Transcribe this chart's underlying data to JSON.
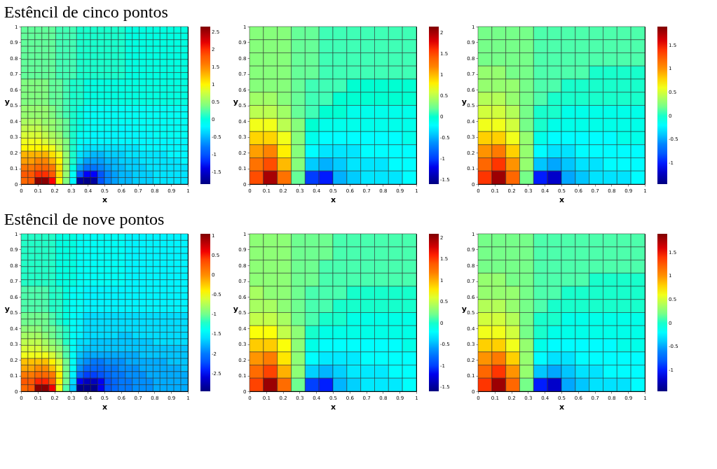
{
  "chart_data": [
    {
      "type": "heatmap",
      "title": "Estêncil de cinco pontos",
      "xlabel": "x",
      "ylabel": "y",
      "xlim": [
        0,
        1
      ],
      "ylim": [
        0,
        1
      ],
      "xticks": [
        0,
        0.1,
        0.2,
        0.3,
        0.4,
        0.5,
        0.6,
        0.7,
        0.8,
        0.9,
        1
      ],
      "yticks": [
        0,
        0.1,
        0.2,
        0.3,
        0.4,
        0.5,
        0.6,
        0.7,
        0.8,
        0.9,
        1
      ],
      "clim": [
        -1.85,
        2.65
      ],
      "cticks": [
        -1.5,
        -1,
        -0.5,
        0,
        0.5,
        1,
        1.5,
        2,
        2.5
      ],
      "cells": [
        [
          0.3,
          0.3,
          0.3,
          0.3,
          0.3,
          0.2,
          0.2,
          0.2,
          0.1,
          0.1,
          0.1,
          0.1,
          0.1,
          0.1,
          0.1,
          0.0,
          0.0,
          0.0,
          0.0,
          0.0,
          0.0,
          0.0,
          0.0,
          0.0
        ],
        [
          0.3,
          0.3,
          0.3,
          0.3,
          0.3,
          0.2,
          0.2,
          0.2,
          0.1,
          0.1,
          0.1,
          0.1,
          0.1,
          0.1,
          0.1,
          0.0,
          0.0,
          0.0,
          0.0,
          0.0,
          0.0,
          0.0,
          0.0,
          0.0
        ],
        [
          0.3,
          0.3,
          0.3,
          0.3,
          0.3,
          0.2,
          0.2,
          0.2,
          0.1,
          0.1,
          0.1,
          0.1,
          0.1,
          0.1,
          0.1,
          0.0,
          0.0,
          0.0,
          0.0,
          0.0,
          0.0,
          0.0,
          0.0,
          0.0
        ],
        [
          0.3,
          0.3,
          0.3,
          0.3,
          0.3,
          0.2,
          0.2,
          0.2,
          0.1,
          0.1,
          0.1,
          0.1,
          0.1,
          0.1,
          0.1,
          0.0,
          0.0,
          0.0,
          0.0,
          0.0,
          0.0,
          0.0,
          0.0,
          0.0
        ],
        [
          0.3,
          0.3,
          0.3,
          0.3,
          0.3,
          0.2,
          0.2,
          0.2,
          0.1,
          0.1,
          0.1,
          0.1,
          0.1,
          0.1,
          0.1,
          0.0,
          0.0,
          0.0,
          0.0,
          0.0,
          0.0,
          0.0,
          0.0,
          0.0
        ],
        [
          0.3,
          0.3,
          0.3,
          0.3,
          0.3,
          0.2,
          0.2,
          0.2,
          0.1,
          0.1,
          0.1,
          0.1,
          0.1,
          0.1,
          0.1,
          0.0,
          0.0,
          0.0,
          0.0,
          0.0,
          0.0,
          0.0,
          0.0,
          0.0
        ],
        [
          0.3,
          0.3,
          0.3,
          0.3,
          0.3,
          0.2,
          0.2,
          0.2,
          0.1,
          0.1,
          0.1,
          0.1,
          0.1,
          0.1,
          0.1,
          0.0,
          0.0,
          0.0,
          0.0,
          0.0,
          0.0,
          0.0,
          0.0,
          0.0
        ],
        [
          0.3,
          0.3,
          0.3,
          0.3,
          0.3,
          0.2,
          0.2,
          0.2,
          0.1,
          0.1,
          0.1,
          0.1,
          0.1,
          0.1,
          0.1,
          0.0,
          0.0,
          0.0,
          0.0,
          0.0,
          0.0,
          0.0,
          0.0,
          0.0
        ],
        [
          0.4,
          0.4,
          0.4,
          0.4,
          0.3,
          0.3,
          0.2,
          0.1,
          0.1,
          0.0,
          0.0,
          0.0,
          0.0,
          0.0,
          0.0,
          0.0,
          0.0,
          0.0,
          0.0,
          0.0,
          0.0,
          0.0,
          0.0,
          0.0
        ],
        [
          0.4,
          0.4,
          0.4,
          0.4,
          0.3,
          0.3,
          0.2,
          0.1,
          0.1,
          0.0,
          0.0,
          0.0,
          0.0,
          0.0,
          0.0,
          0.0,
          0.0,
          0.0,
          0.0,
          0.0,
          0.0,
          0.0,
          0.0,
          0.0
        ],
        [
          0.4,
          0.4,
          0.4,
          0.4,
          0.3,
          0.3,
          0.2,
          0.1,
          0.1,
          0.0,
          0.0,
          0.0,
          0.0,
          0.0,
          0.0,
          0.0,
          0.0,
          0.0,
          0.0,
          0.0,
          0.0,
          0.0,
          0.0,
          0.0
        ],
        [
          0.4,
          0.4,
          0.4,
          0.4,
          0.3,
          0.3,
          0.2,
          0.1,
          0.1,
          0.0,
          0.0,
          0.0,
          0.0,
          0.0,
          0.0,
          0.0,
          0.0,
          0.0,
          0.0,
          0.0,
          0.0,
          0.0,
          0.0,
          0.0
        ],
        [
          0.5,
          0.5,
          0.5,
          0.5,
          0.4,
          0.3,
          0.2,
          0.1,
          0.0,
          -0.1,
          -0.1,
          -0.1,
          -0.1,
          -0.1,
          -0.1,
          -0.1,
          -0.1,
          -0.1,
          -0.1,
          -0.1,
          -0.1,
          -0.1,
          -0.1,
          -0.1
        ],
        [
          0.5,
          0.5,
          0.5,
          0.5,
          0.4,
          0.3,
          0.2,
          0.1,
          0.0,
          -0.1,
          -0.1,
          -0.1,
          -0.1,
          -0.1,
          -0.1,
          -0.1,
          -0.1,
          -0.1,
          -0.1,
          -0.1,
          -0.1,
          -0.1,
          -0.1,
          -0.1
        ],
        [
          0.6,
          0.6,
          0.6,
          0.5,
          0.5,
          0.4,
          0.3,
          0.1,
          0.0,
          -0.1,
          -0.1,
          -0.1,
          -0.1,
          -0.1,
          -0.1,
          -0.1,
          -0.1,
          -0.1,
          -0.1,
          -0.1,
          -0.1,
          -0.1,
          -0.1,
          -0.1
        ],
        [
          0.7,
          0.7,
          0.7,
          0.6,
          0.5,
          0.4,
          0.3,
          0.1,
          0.0,
          -0.1,
          -0.1,
          -0.1,
          -0.1,
          -0.1,
          -0.2,
          -0.2,
          -0.1,
          -0.1,
          -0.1,
          -0.1,
          -0.1,
          -0.1,
          -0.1,
          -0.1
        ],
        [
          0.8,
          0.8,
          0.8,
          0.7,
          0.6,
          0.5,
          0.3,
          0.1,
          -0.1,
          -0.1,
          -0.2,
          -0.2,
          -0.2,
          -0.2,
          -0.2,
          -0.2,
          -0.2,
          -0.2,
          -0.2,
          -0.1,
          -0.1,
          -0.1,
          -0.1,
          -0.1
        ],
        [
          0.9,
          0.9,
          0.9,
          0.8,
          0.7,
          0.6,
          0.4,
          0.1,
          -0.1,
          -0.2,
          -0.2,
          -0.2,
          -0.2,
          -0.2,
          -0.2,
          -0.2,
          -0.2,
          -0.2,
          -0.2,
          -0.2,
          -0.2,
          -0.2,
          -0.2,
          -0.2
        ],
        [
          1.0,
          1.0,
          1.0,
          1.0,
          0.9,
          0.7,
          0.4,
          0.1,
          -0.2,
          -0.3,
          -0.3,
          -0.3,
          -0.3,
          -0.3,
          -0.3,
          -0.3,
          -0.3,
          -0.2,
          -0.2,
          -0.2,
          -0.2,
          -0.2,
          -0.2,
          -0.2
        ],
        [
          1.3,
          1.3,
          1.3,
          1.3,
          1.1,
          0.9,
          0.5,
          0.1,
          -0.3,
          -0.4,
          -0.5,
          -0.5,
          -0.4,
          -0.4,
          -0.4,
          -0.3,
          -0.3,
          -0.3,
          -0.3,
          -0.3,
          -0.3,
          -0.2,
          -0.2,
          -0.2
        ],
        [
          1.4,
          1.4,
          1.5,
          1.5,
          1.3,
          1.0,
          0.5,
          0.1,
          -0.4,
          -0.6,
          -0.6,
          -0.6,
          -0.5,
          -0.5,
          -0.4,
          -0.4,
          -0.4,
          -0.3,
          -0.3,
          -0.3,
          -0.3,
          -0.3,
          -0.3,
          -0.2
        ],
        [
          1.6,
          1.6,
          1.7,
          1.7,
          1.6,
          1.1,
          0.5,
          0.0,
          -0.6,
          -0.8,
          -0.8,
          -0.7,
          -0.6,
          -0.5,
          -0.5,
          -0.4,
          -0.4,
          -0.4,
          -0.3,
          -0.3,
          -0.3,
          -0.3,
          -0.3,
          -0.3
        ],
        [
          1.8,
          1.8,
          2.0,
          2.0,
          1.8,
          1.1,
          0.5,
          -0.1,
          -1.0,
          -1.3,
          -1.3,
          -1.0,
          -0.7,
          -0.6,
          -0.5,
          -0.5,
          -0.4,
          -0.4,
          -0.4,
          -0.3,
          -0.3,
          -0.3,
          -0.3,
          -0.3
        ],
        [
          1.7,
          1.8,
          2.6,
          2.6,
          2.1,
          1.0,
          0.4,
          -0.2,
          -1.7,
          -1.8,
          -1.7,
          -1.0,
          -0.7,
          -0.6,
          -0.5,
          -0.5,
          -0.4,
          -0.4,
          -0.4,
          -0.3,
          -0.3,
          -0.3,
          -0.3,
          -0.3
        ]
      ]
    },
    {
      "type": "heatmap",
      "xlabel": "x",
      "ylabel": "y",
      "xlim": [
        0,
        1
      ],
      "ylim": [
        0,
        1
      ],
      "xticks": [
        0,
        0.1,
        0.2,
        0.3,
        0.4,
        0.5,
        0.6,
        0.7,
        0.8,
        0.9,
        1
      ],
      "yticks": [
        0,
        0.1,
        0.2,
        0.3,
        0.4,
        0.5,
        0.6,
        0.7,
        0.8,
        0.9,
        1
      ],
      "clim": [
        -1.6,
        2.15
      ],
      "cticks": [
        -1.5,
        -1,
        -0.5,
        0,
        0.5,
        1,
        1.5,
        2
      ],
      "cells": [
        [
          0.3,
          0.3,
          0.3,
          0.2,
          0.2,
          0.1,
          0.1,
          0.1,
          0.1,
          0.1,
          0.1,
          0.1
        ],
        [
          0.3,
          0.3,
          0.3,
          0.2,
          0.2,
          0.1,
          0.1,
          0.1,
          0.1,
          0.1,
          0.1,
          0.1
        ],
        [
          0.3,
          0.3,
          0.3,
          0.2,
          0.2,
          0.1,
          0.1,
          0.1,
          0.1,
          0.1,
          0.1,
          0.1
        ],
        [
          0.3,
          0.3,
          0.3,
          0.2,
          0.2,
          0.1,
          0.1,
          0.1,
          0.1,
          0.1,
          0.1,
          0.1
        ],
        [
          0.3,
          0.3,
          0.3,
          0.2,
          0.1,
          0.1,
          0.1,
          0.0,
          0.0,
          0.0,
          0.0,
          0.0
        ],
        [
          0.4,
          0.4,
          0.3,
          0.2,
          0.1,
          0.1,
          0.0,
          0.0,
          0.0,
          0.0,
          0.0,
          0.0
        ],
        [
          0.5,
          0.5,
          0.4,
          0.2,
          0.1,
          0.0,
          0.0,
          -0.1,
          -0.1,
          -0.1,
          -0.1,
          -0.1
        ],
        [
          0.7,
          0.7,
          0.5,
          0.3,
          0.0,
          -0.1,
          -0.1,
          -0.1,
          -0.1,
          -0.1,
          -0.1,
          -0.1
        ],
        [
          0.9,
          0.9,
          0.7,
          0.3,
          -0.1,
          -0.2,
          -0.2,
          -0.2,
          -0.2,
          -0.2,
          -0.2,
          -0.1
        ],
        [
          1.1,
          1.2,
          0.8,
          0.3,
          -0.2,
          -0.3,
          -0.3,
          -0.3,
          -0.2,
          -0.2,
          -0.2,
          -0.2
        ],
        [
          1.3,
          1.5,
          1.0,
          0.3,
          -0.4,
          -0.5,
          -0.4,
          -0.3,
          -0.3,
          -0.3,
          -0.2,
          -0.2
        ],
        [
          1.5,
          2.0,
          1.3,
          0.2,
          -1.0,
          -1.1,
          -0.5,
          -0.4,
          -0.3,
          -0.3,
          -0.3,
          -0.2
        ]
      ]
    },
    {
      "type": "heatmap",
      "xlabel": "x",
      "ylabel": "y",
      "xlim": [
        0,
        1
      ],
      "ylim": [
        0,
        1
      ],
      "xticks": [
        0,
        0.1,
        0.2,
        0.3,
        0.4,
        0.5,
        0.6,
        0.7,
        0.8,
        0.9,
        1
      ],
      "yticks": [
        0,
        0.1,
        0.2,
        0.3,
        0.4,
        0.5,
        0.6,
        0.7,
        0.8,
        0.9,
        1
      ],
      "clim": [
        -1.45,
        1.9
      ],
      "cticks": [
        -1,
        -0.5,
        0,
        0.5,
        1,
        1.5
      ],
      "cells": [
        [
          0.2,
          0.2,
          0.2,
          0.2,
          0.1,
          0.1,
          0.1,
          0.1,
          0.1,
          0.1,
          0.1,
          0.1
        ],
        [
          0.2,
          0.2,
          0.2,
          0.2,
          0.1,
          0.1,
          0.1,
          0.1,
          0.1,
          0.1,
          0.1,
          0.1
        ],
        [
          0.2,
          0.2,
          0.2,
          0.2,
          0.1,
          0.1,
          0.1,
          0.1,
          0.1,
          0.1,
          0.1,
          0.1
        ],
        [
          0.3,
          0.3,
          0.2,
          0.2,
          0.1,
          0.1,
          0.1,
          0.1,
          0.0,
          0.0,
          0.0,
          0.0
        ],
        [
          0.3,
          0.3,
          0.3,
          0.2,
          0.1,
          0.1,
          0.0,
          0.0,
          0.0,
          0.0,
          0.0,
          0.0
        ],
        [
          0.4,
          0.4,
          0.3,
          0.2,
          0.1,
          0.0,
          0.0,
          0.0,
          0.0,
          0.0,
          0.0,
          0.0
        ],
        [
          0.5,
          0.5,
          0.4,
          0.2,
          0.0,
          0.0,
          -0.1,
          -0.1,
          -0.1,
          -0.1,
          -0.1,
          -0.1
        ],
        [
          0.6,
          0.6,
          0.5,
          0.2,
          0.0,
          -0.1,
          -0.1,
          -0.1,
          -0.1,
          -0.1,
          -0.1,
          -0.1
        ],
        [
          0.8,
          0.8,
          0.6,
          0.3,
          -0.1,
          -0.2,
          -0.2,
          -0.2,
          -0.2,
          -0.2,
          -0.1,
          -0.1
        ],
        [
          1.0,
          1.1,
          0.8,
          0.3,
          -0.2,
          -0.3,
          -0.3,
          -0.2,
          -0.2,
          -0.2,
          -0.2,
          -0.2
        ],
        [
          1.2,
          1.4,
          1.0,
          0.3,
          -0.4,
          -0.5,
          -0.4,
          -0.3,
          -0.3,
          -0.2,
          -0.2,
          -0.2
        ],
        [
          1.4,
          1.8,
          1.2,
          0.2,
          -1.0,
          -1.2,
          -0.5,
          -0.4,
          -0.3,
          -0.3,
          -0.3,
          -0.2
        ]
      ]
    },
    {
      "type": "heatmap",
      "title": "Estêncil de nove pontos",
      "xlabel": "x",
      "ylabel": "y",
      "xlim": [
        0,
        1
      ],
      "ylim": [
        0,
        1
      ],
      "xticks": [
        0,
        0.1,
        0.2,
        0.3,
        0.4,
        0.5,
        0.6,
        0.7,
        0.8,
        0.9,
        1
      ],
      "yticks": [
        0,
        0.1,
        0.2,
        0.3,
        0.4,
        0.5,
        0.6,
        0.7,
        0.8,
        0.9,
        1
      ],
      "clim": [
        -2.95,
        1.05
      ],
      "cticks": [
        -2.5,
        -2,
        -1.5,
        -1,
        -0.5,
        0,
        0.5,
        1
      ],
      "cells": [
        [
          -1.2,
          -1.2,
          -1.2,
          -1.2,
          -1.2,
          -1.3,
          -1.3,
          -1.3,
          -1.4,
          -1.4,
          -1.4,
          -1.4,
          -1.4,
          -1.4,
          -1.4,
          -1.5,
          -1.5,
          -1.5,
          -1.5,
          -1.5,
          -1.5,
          -1.5,
          -1.5,
          -1.5
        ],
        [
          -1.2,
          -1.2,
          -1.2,
          -1.2,
          -1.2,
          -1.3,
          -1.3,
          -1.3,
          -1.4,
          -1.4,
          -1.4,
          -1.4,
          -1.4,
          -1.4,
          -1.4,
          -1.5,
          -1.5,
          -1.5,
          -1.5,
          -1.5,
          -1.5,
          -1.5,
          -1.5,
          -1.5
        ],
        [
          -1.2,
          -1.2,
          -1.2,
          -1.2,
          -1.2,
          -1.3,
          -1.3,
          -1.3,
          -1.4,
          -1.4,
          -1.4,
          -1.4,
          -1.4,
          -1.4,
          -1.4,
          -1.5,
          -1.5,
          -1.5,
          -1.5,
          -1.5,
          -1.5,
          -1.5,
          -1.5,
          -1.5
        ],
        [
          -1.2,
          -1.2,
          -1.2,
          -1.2,
          -1.2,
          -1.3,
          -1.3,
          -1.3,
          -1.4,
          -1.4,
          -1.4,
          -1.4,
          -1.4,
          -1.4,
          -1.4,
          -1.5,
          -1.5,
          -1.5,
          -1.5,
          -1.5,
          -1.5,
          -1.5,
          -1.5,
          -1.5
        ],
        [
          -1.2,
          -1.2,
          -1.2,
          -1.2,
          -1.2,
          -1.3,
          -1.3,
          -1.3,
          -1.4,
          -1.4,
          -1.4,
          -1.4,
          -1.4,
          -1.4,
          -1.4,
          -1.5,
          -1.5,
          -1.5,
          -1.5,
          -1.5,
          -1.5,
          -1.5,
          -1.5,
          -1.5
        ],
        [
          -1.2,
          -1.2,
          -1.2,
          -1.2,
          -1.2,
          -1.3,
          -1.3,
          -1.3,
          -1.4,
          -1.4,
          -1.4,
          -1.4,
          -1.4,
          -1.4,
          -1.4,
          -1.5,
          -1.5,
          -1.5,
          -1.5,
          -1.5,
          -1.5,
          -1.5,
          -1.5,
          -1.5
        ],
        [
          -1.2,
          -1.2,
          -1.2,
          -1.2,
          -1.2,
          -1.3,
          -1.3,
          -1.3,
          -1.4,
          -1.4,
          -1.4,
          -1.4,
          -1.4,
          -1.4,
          -1.4,
          -1.5,
          -1.5,
          -1.5,
          -1.5,
          -1.5,
          -1.5,
          -1.5,
          -1.5,
          -1.5
        ],
        [
          -1.2,
          -1.2,
          -1.2,
          -1.2,
          -1.2,
          -1.3,
          -1.3,
          -1.3,
          -1.4,
          -1.4,
          -1.4,
          -1.4,
          -1.4,
          -1.4,
          -1.4,
          -1.5,
          -1.5,
          -1.5,
          -1.5,
          -1.5,
          -1.5,
          -1.5,
          -1.5,
          -1.5
        ],
        [
          -1.1,
          -1.1,
          -1.1,
          -1.1,
          -1.2,
          -1.2,
          -1.3,
          -1.4,
          -1.4,
          -1.5,
          -1.5,
          -1.5,
          -1.5,
          -1.5,
          -1.5,
          -1.5,
          -1.5,
          -1.5,
          -1.5,
          -1.5,
          -1.5,
          -1.5,
          -1.5,
          -1.5
        ],
        [
          -1.1,
          -1.1,
          -1.1,
          -1.1,
          -1.2,
          -1.2,
          -1.3,
          -1.4,
          -1.4,
          -1.5,
          -1.5,
          -1.5,
          -1.5,
          -1.5,
          -1.5,
          -1.5,
          -1.5,
          -1.5,
          -1.5,
          -1.5,
          -1.5,
          -1.5,
          -1.5,
          -1.5
        ],
        [
          -1.1,
          -1.1,
          -1.1,
          -1.1,
          -1.2,
          -1.2,
          -1.3,
          -1.4,
          -1.4,
          -1.5,
          -1.5,
          -1.5,
          -1.5,
          -1.5,
          -1.5,
          -1.5,
          -1.5,
          -1.5,
          -1.5,
          -1.5,
          -1.5,
          -1.5,
          -1.5,
          -1.5
        ],
        [
          -1.1,
          -1.1,
          -1.1,
          -1.1,
          -1.2,
          -1.2,
          -1.3,
          -1.4,
          -1.4,
          -1.5,
          -1.5,
          -1.5,
          -1.5,
          -1.5,
          -1.5,
          -1.5,
          -1.5,
          -1.5,
          -1.5,
          -1.5,
          -1.5,
          -1.5,
          -1.5,
          -1.5
        ],
        [
          -1.0,
          -1.0,
          -1.0,
          -1.0,
          -1.1,
          -1.2,
          -1.3,
          -1.4,
          -1.5,
          -1.6,
          -1.6,
          -1.6,
          -1.6,
          -1.6,
          -1.6,
          -1.6,
          -1.6,
          -1.6,
          -1.6,
          -1.6,
          -1.6,
          -1.6,
          -1.6,
          -1.6
        ],
        [
          -1.0,
          -1.0,
          -1.0,
          -1.0,
          -1.1,
          -1.2,
          -1.3,
          -1.4,
          -1.5,
          -1.6,
          -1.6,
          -1.6,
          -1.6,
          -1.6,
          -1.6,
          -1.6,
          -1.6,
          -1.6,
          -1.6,
          -1.6,
          -1.6,
          -1.6,
          -1.6,
          -1.6
        ],
        [
          -0.9,
          -0.9,
          -0.9,
          -1.0,
          -1.0,
          -1.1,
          -1.2,
          -1.4,
          -1.5,
          -1.6,
          -1.6,
          -1.6,
          -1.6,
          -1.6,
          -1.6,
          -1.6,
          -1.6,
          -1.6,
          -1.6,
          -1.6,
          -1.6,
          -1.6,
          -1.6,
          -1.6
        ],
        [
          -0.8,
          -0.8,
          -0.8,
          -0.9,
          -1.0,
          -1.1,
          -1.2,
          -1.4,
          -1.5,
          -1.6,
          -1.6,
          -1.6,
          -1.6,
          -1.6,
          -1.7,
          -1.7,
          -1.6,
          -1.6,
          -1.6,
          -1.6,
          -1.6,
          -1.6,
          -1.6,
          -1.6
        ],
        [
          -0.7,
          -0.7,
          -0.7,
          -0.8,
          -0.9,
          -1.0,
          -1.2,
          -1.4,
          -1.6,
          -1.6,
          -1.7,
          -1.7,
          -1.7,
          -1.7,
          -1.7,
          -1.7,
          -1.7,
          -1.7,
          -1.7,
          -1.6,
          -1.6,
          -1.6,
          -1.6,
          -1.6
        ],
        [
          -0.6,
          -0.6,
          -0.6,
          -0.7,
          -0.8,
          -0.9,
          -1.1,
          -1.4,
          -1.6,
          -1.7,
          -1.7,
          -1.7,
          -1.7,
          -1.7,
          -1.7,
          -1.7,
          -1.7,
          -1.7,
          -1.7,
          -1.7,
          -1.7,
          -1.7,
          -1.7,
          -1.7
        ],
        [
          -0.5,
          -0.5,
          -0.5,
          -0.5,
          -0.6,
          -0.8,
          -1.1,
          -1.4,
          -1.7,
          -1.8,
          -1.8,
          -1.8,
          -1.8,
          -1.8,
          -1.8,
          -1.8,
          -1.8,
          -1.7,
          -1.7,
          -1.7,
          -1.7,
          -1.7,
          -1.7,
          -1.7
        ],
        [
          -0.2,
          -0.2,
          -0.2,
          -0.2,
          -0.4,
          -0.6,
          -1.0,
          -1.4,
          -1.8,
          -1.9,
          -2.0,
          -2.0,
          -1.9,
          -1.9,
          -1.9,
          -1.8,
          -1.8,
          -1.8,
          -1.8,
          -1.8,
          -1.8,
          -1.7,
          -1.7,
          -1.7
        ],
        [
          -0.1,
          -0.1,
          0.0,
          0.0,
          -0.2,
          -0.5,
          -1.0,
          -1.4,
          -1.9,
          -2.1,
          -2.1,
          -2.1,
          -2.0,
          -2.0,
          -1.9,
          -1.9,
          -1.9,
          -1.8,
          -1.8,
          -1.8,
          -1.8,
          -1.8,
          -1.8,
          -1.7
        ],
        [
          0.1,
          0.1,
          0.2,
          0.2,
          0.1,
          -0.4,
          -1.0,
          -1.5,
          -2.1,
          -2.3,
          -2.3,
          -2.2,
          -2.1,
          -2.0,
          -2.0,
          -1.9,
          -1.9,
          -1.9,
          -1.8,
          -1.8,
          -1.8,
          -1.8,
          -1.8,
          -1.8
        ],
        [
          0.3,
          0.3,
          0.5,
          0.5,
          0.3,
          -0.4,
          -1.0,
          -1.6,
          -2.5,
          -2.7,
          -2.7,
          -2.5,
          -2.2,
          -2.1,
          -2.0,
          -2.0,
          -1.9,
          -1.9,
          -1.9,
          -1.8,
          -1.8,
          -1.8,
          -1.8,
          -1.8
        ],
        [
          0.2,
          0.3,
          1.0,
          1.0,
          0.6,
          -0.5,
          -1.1,
          -1.7,
          -2.9,
          -2.9,
          -2.9,
          -2.5,
          -2.2,
          -2.1,
          -2.0,
          -2.0,
          -1.9,
          -1.9,
          -1.9,
          -1.8,
          -1.8,
          -1.8,
          -1.8,
          -1.8
        ]
      ]
    },
    {
      "type": "heatmap",
      "xlabel": "x",
      "ylabel": "y",
      "xlim": [
        0,
        1
      ],
      "ylim": [
        0,
        1
      ],
      "xticks": [
        0,
        0.1,
        0.2,
        0.3,
        0.4,
        0.5,
        0.6,
        0.7,
        0.8,
        0.9,
        1
      ],
      "yticks": [
        0,
        0.1,
        0.2,
        0.3,
        0.4,
        0.5,
        0.6,
        0.7,
        0.8,
        0.9,
        1
      ],
      "clim": [
        -1.6,
        2.1
      ],
      "cticks": [
        -1.5,
        -1,
        -0.5,
        0,
        0.5,
        1,
        1.5,
        2
      ],
      "cells": [
        [
          0.3,
          0.3,
          0.3,
          0.2,
          0.2,
          0.2,
          0.1,
          0.1,
          0.1,
          0.1,
          0.1,
          0.1
        ],
        [
          0.3,
          0.3,
          0.3,
          0.2,
          0.2,
          0.2,
          0.1,
          0.1,
          0.1,
          0.1,
          0.1,
          0.1
        ],
        [
          0.3,
          0.3,
          0.3,
          0.2,
          0.2,
          0.1,
          0.1,
          0.1,
          0.1,
          0.1,
          0.1,
          0.1
        ],
        [
          0.3,
          0.3,
          0.3,
          0.2,
          0.2,
          0.1,
          0.1,
          0.1,
          0.1,
          0.1,
          0.1,
          0.1
        ],
        [
          0.4,
          0.3,
          0.3,
          0.2,
          0.1,
          0.1,
          0.1,
          0.0,
          0.0,
          0.0,
          0.0,
          0.0
        ],
        [
          0.4,
          0.4,
          0.3,
          0.2,
          0.1,
          0.1,
          0.0,
          0.0,
          0.0,
          0.0,
          0.0,
          0.0
        ],
        [
          0.5,
          0.5,
          0.4,
          0.2,
          0.1,
          0.0,
          0.0,
          -0.1,
          -0.1,
          -0.1,
          -0.1,
          -0.1
        ],
        [
          0.7,
          0.7,
          0.5,
          0.3,
          0.0,
          -0.1,
          -0.1,
          -0.1,
          -0.1,
          -0.1,
          -0.1,
          -0.1
        ],
        [
          0.9,
          0.9,
          0.7,
          0.3,
          -0.1,
          -0.2,
          -0.2,
          -0.2,
          -0.2,
          -0.2,
          -0.2,
          -0.1
        ],
        [
          1.1,
          1.2,
          0.8,
          0.3,
          -0.2,
          -0.3,
          -0.3,
          -0.3,
          -0.2,
          -0.2,
          -0.2,
          -0.2
        ],
        [
          1.3,
          1.5,
          1.0,
          0.3,
          -0.4,
          -0.5,
          -0.4,
          -0.3,
          -0.3,
          -0.3,
          -0.2,
          -0.2
        ],
        [
          1.5,
          2.0,
          1.3,
          0.2,
          -1.0,
          -1.1,
          -0.5,
          -0.4,
          -0.3,
          -0.3,
          -0.3,
          -0.2
        ]
      ]
    },
    {
      "type": "heatmap",
      "xlabel": "x",
      "ylabel": "y",
      "xlim": [
        0,
        1
      ],
      "ylim": [
        0,
        1
      ],
      "xticks": [
        0,
        0.1,
        0.2,
        0.3,
        0.4,
        0.5,
        0.6,
        0.7,
        0.8,
        0.9,
        1
      ],
      "yticks": [
        0,
        0.1,
        0.2,
        0.3,
        0.4,
        0.5,
        0.6,
        0.7,
        0.8,
        0.9,
        1
      ],
      "clim": [
        -1.45,
        1.9
      ],
      "cticks": [
        -1,
        -0.5,
        0,
        0.5,
        1,
        1.5
      ],
      "cells": [
        [
          0.2,
          0.2,
          0.2,
          0.2,
          0.1,
          0.1,
          0.1,
          0.1,
          0.1,
          0.1,
          0.1,
          0.1
        ],
        [
          0.2,
          0.2,
          0.2,
          0.2,
          0.1,
          0.1,
          0.1,
          0.1,
          0.1,
          0.1,
          0.1,
          0.1
        ],
        [
          0.2,
          0.2,
          0.2,
          0.2,
          0.1,
          0.1,
          0.1,
          0.1,
          0.1,
          0.1,
          0.1,
          0.1
        ],
        [
          0.3,
          0.3,
          0.2,
          0.2,
          0.1,
          0.1,
          0.1,
          0.1,
          0.0,
          0.0,
          0.0,
          0.0
        ],
        [
          0.3,
          0.3,
          0.3,
          0.2,
          0.1,
          0.1,
          0.0,
          0.0,
          0.0,
          0.0,
          0.0,
          0.0
        ],
        [
          0.4,
          0.4,
          0.3,
          0.2,
          0.1,
          0.0,
          0.0,
          0.0,
          0.0,
          0.0,
          0.0,
          0.0
        ],
        [
          0.5,
          0.5,
          0.4,
          0.2,
          0.0,
          0.0,
          -0.1,
          -0.1,
          -0.1,
          -0.1,
          -0.1,
          -0.1
        ],
        [
          0.6,
          0.6,
          0.5,
          0.2,
          0.0,
          -0.1,
          -0.1,
          -0.1,
          -0.1,
          -0.1,
          -0.1,
          -0.1
        ],
        [
          0.8,
          0.8,
          0.6,
          0.3,
          -0.1,
          -0.2,
          -0.2,
          -0.2,
          -0.2,
          -0.2,
          -0.1,
          -0.1
        ],
        [
          1.0,
          1.1,
          0.8,
          0.3,
          -0.2,
          -0.3,
          -0.3,
          -0.2,
          -0.2,
          -0.2,
          -0.2,
          -0.2
        ],
        [
          1.2,
          1.4,
          1.0,
          0.3,
          -0.4,
          -0.5,
          -0.4,
          -0.3,
          -0.3,
          -0.2,
          -0.2,
          -0.2
        ],
        [
          1.4,
          1.8,
          1.2,
          0.2,
          -1.0,
          -1.2,
          -0.5,
          -0.4,
          -0.3,
          -0.3,
          -0.3,
          -0.2
        ]
      ]
    }
  ]
}
